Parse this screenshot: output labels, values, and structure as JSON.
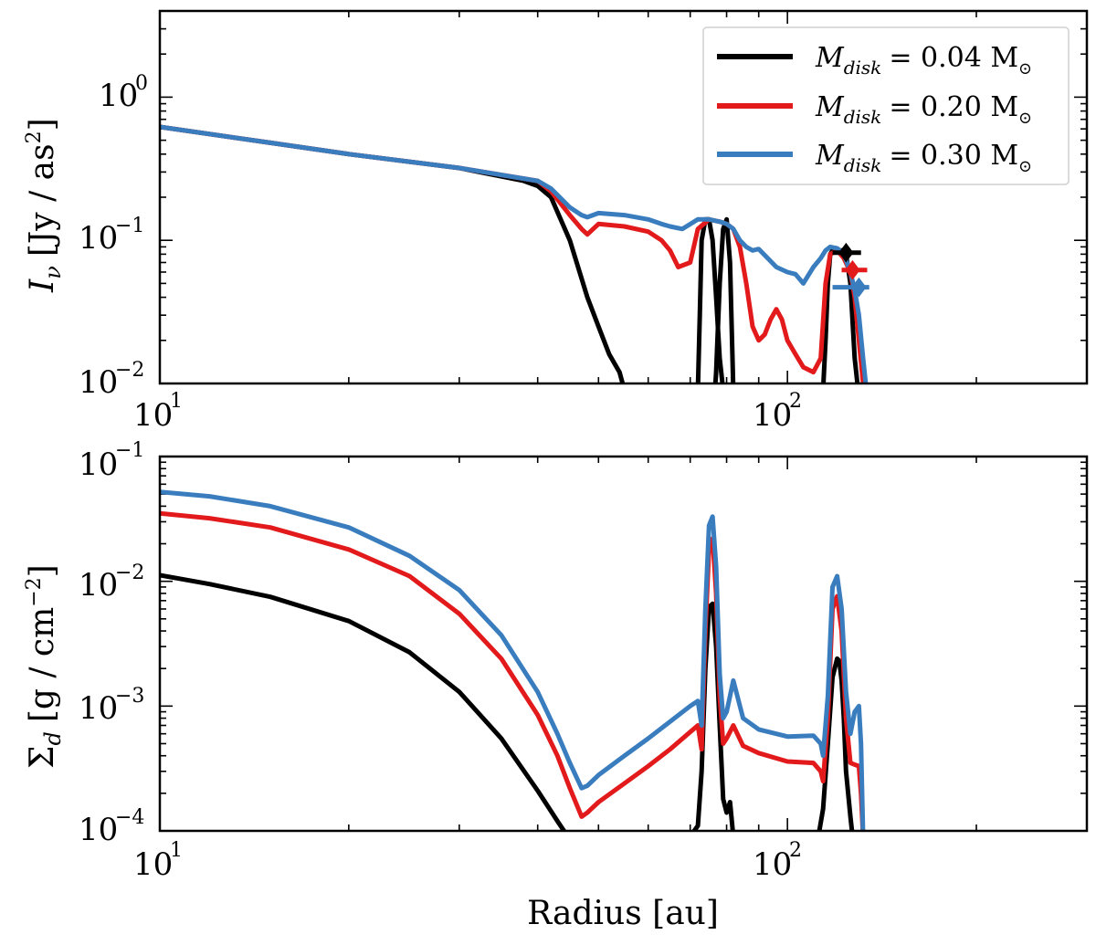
{
  "chart_data": [
    {
      "type": "line",
      "id": "top",
      "ylabel_symbol": "I",
      "ylabel_sub": "ν",
      "ylabel_units": "[Jy / as",
      "ylabel_units_sup": "2",
      "ylabel_units_close": "]",
      "xscale": "log",
      "yscale": "log",
      "xlim": [
        10,
        300
      ],
      "ylim": [
        0.01,
        4
      ],
      "yticks": [
        {
          "value": 1,
          "base": "10",
          "exp": "0"
        },
        {
          "value": 0.1,
          "base": "10",
          "exp": "−1"
        },
        {
          "value": 0.01,
          "base": "10",
          "exp": "−2"
        }
      ],
      "xticks": [
        {
          "value": 10,
          "base": "10",
          "exp": "1"
        },
        {
          "value": 100,
          "base": "10",
          "exp": "2"
        }
      ],
      "legend": {
        "placement": "top-right",
        "entries": [
          {
            "name_main": "M",
            "name_sub": "disk",
            "value_text": "= 0.04 M",
            "sun": "⊙",
            "color": "#000000"
          },
          {
            "name_main": "M",
            "name_sub": "disk",
            "value_text": "= 0.20 M",
            "sun": "⊙",
            "color": "#e31a1c"
          },
          {
            "name_main": "M",
            "name_sub": "disk",
            "value_text": "= 0.30 M",
            "sun": "⊙",
            "color": "#3a7dbf"
          }
        ]
      },
      "series": [
        {
          "name": "M_disk = 0.04 Msun",
          "color": "#000000",
          "x": [
            10,
            15,
            20,
            30,
            38,
            40,
            42,
            45,
            48,
            50,
            52,
            54,
            55
          ],
          "y": [
            0.62,
            0.48,
            0.4,
            0.32,
            0.26,
            0.24,
            0.2,
            0.1,
            0.04,
            0.025,
            0.016,
            0.012,
            0.009
          ],
          "segments_extra": [
            {
              "x": [
                72,
                72.5,
                73,
                74,
                75,
                76,
                77,
                78,
                79,
                80,
                81
              ],
              "y": [
                0.009,
                0.03,
                0.1,
                0.14,
                0.14,
                0.1,
                0.04,
                0.015,
                0.009,
                0.006,
                0.004
              ]
            },
            {
              "x": [
                76,
                77,
                78,
                79,
                80,
                81,
                82
              ],
              "y": [
                0.005,
                0.012,
                0.05,
                0.12,
                0.14,
                0.07,
                0.009
              ]
            },
            {
              "x": [
                114,
                115,
                116,
                117,
                118,
                120,
                122,
                124,
                126,
                128,
                130
              ],
              "y": [
                0.009,
                0.02,
                0.05,
                0.08,
                0.085,
                0.085,
                0.085,
                0.08,
                0.05,
                0.015,
                0.008
              ]
            }
          ],
          "marker": {
            "x": 124,
            "y": 0.082
          },
          "errorbar": {
            "x0": 118,
            "x1": 131,
            "y": 0.082
          }
        },
        {
          "name": "M_disk = 0.20 Msun",
          "color": "#e31a1c",
          "x": [
            10,
            15,
            20,
            30,
            38,
            40,
            42,
            45,
            47,
            48,
            50,
            55,
            60,
            63,
            65,
            67,
            70,
            72,
            75,
            78,
            80,
            82,
            84,
            86,
            88,
            90,
            92,
            94,
            96,
            98,
            100,
            103,
            106,
            110,
            113,
            115,
            117,
            120,
            123,
            126,
            128,
            130,
            132,
            134
          ],
          "y": [
            0.62,
            0.48,
            0.4,
            0.32,
            0.27,
            0.26,
            0.22,
            0.15,
            0.12,
            0.11,
            0.13,
            0.125,
            0.115,
            0.1,
            0.085,
            0.065,
            0.07,
            0.12,
            0.14,
            0.135,
            0.13,
            0.12,
            0.09,
            0.05,
            0.025,
            0.02,
            0.022,
            0.028,
            0.033,
            0.028,
            0.02,
            0.016,
            0.013,
            0.012,
            0.015,
            0.05,
            0.08,
            0.085,
            0.075,
            0.06,
            0.04,
            0.02,
            0.01,
            0.008
          ],
          "marker": {
            "x": 127,
            "y": 0.062
          },
          "errorbar": {
            "x0": 122,
            "x1": 134,
            "y": 0.062
          }
        },
        {
          "name": "M_disk = 0.30 Msun",
          "color": "#3a7dbf",
          "x": [
            10,
            15,
            20,
            30,
            38,
            40,
            42,
            45,
            47,
            48,
            50,
            55,
            60,
            63,
            65,
            68,
            72,
            75,
            78,
            80,
            82,
            84,
            86,
            88,
            90,
            93,
            96,
            100,
            103,
            106,
            110,
            113,
            115,
            117,
            120,
            123,
            126,
            128,
            130,
            132,
            134
          ],
          "y": [
            0.62,
            0.48,
            0.4,
            0.32,
            0.27,
            0.26,
            0.23,
            0.17,
            0.15,
            0.145,
            0.155,
            0.15,
            0.14,
            0.13,
            0.125,
            0.12,
            0.14,
            0.14,
            0.135,
            0.13,
            0.12,
            0.1,
            0.09,
            0.085,
            0.087,
            0.075,
            0.065,
            0.06,
            0.058,
            0.05,
            0.065,
            0.075,
            0.085,
            0.09,
            0.088,
            0.08,
            0.06,
            0.045,
            0.03,
            0.015,
            0.008
          ],
          "marker": {
            "x": 130,
            "y": 0.047
          },
          "errorbar": {
            "x0": 118,
            "x1": 135,
            "y": 0.047
          }
        }
      ]
    },
    {
      "type": "line",
      "id": "bottom",
      "xlabel": "Radius [au]",
      "ylabel_symbol": "Σ",
      "ylabel_sub": "d",
      "ylabel_units": "[g / cm",
      "ylabel_units_sup": "−2",
      "ylabel_units_close": "]",
      "xscale": "log",
      "yscale": "log",
      "xlim": [
        10,
        300
      ],
      "ylim": [
        0.0001,
        0.1
      ],
      "yticks": [
        {
          "value": 0.1,
          "base": "10",
          "exp": "−1"
        },
        {
          "value": 0.01,
          "base": "10",
          "exp": "−2"
        },
        {
          "value": 0.001,
          "base": "10",
          "exp": "−3"
        },
        {
          "value": 0.0001,
          "base": "10",
          "exp": "−4"
        }
      ],
      "xticks": [
        {
          "value": 10,
          "base": "10",
          "exp": "1"
        },
        {
          "value": 100,
          "base": "10",
          "exp": "2"
        }
      ],
      "series": [
        {
          "name": "M_disk = 0.04 Msun",
          "color": "#000000",
          "x": [
            10,
            12,
            15,
            20,
            25,
            30,
            35,
            40,
            43,
            45
          ],
          "y": [
            0.0112,
            0.0095,
            0.0075,
            0.0048,
            0.0027,
            0.0013,
            0.00055,
            0.00021,
            0.00012,
            8.5e-05
          ],
          "segments_extra": [
            {
              "x": [
                70,
                72,
                73,
                74,
                75,
                76,
                77,
                78,
                79,
                80,
                81,
                82
              ],
              "y": [
                9e-05,
                0.00011,
                0.0003,
                0.002,
                0.0062,
                0.0066,
                0.003,
                0.0007,
                0.00018,
                0.00014,
                0.00017,
                9e-05
              ]
            },
            {
              "x": [
                112,
                114,
                116,
                118,
                120,
                121,
                122,
                123,
                124,
                126,
                127
              ],
              "y": [
                9e-05,
                0.00015,
                0.0005,
                0.0017,
                0.0024,
                0.0023,
                0.0016,
                0.0008,
                0.0003,
                0.00013,
                9e-05
              ]
            }
          ]
        },
        {
          "name": "M_disk = 0.20 Msun",
          "color": "#e31a1c",
          "x": [
            10,
            12,
            15,
            20,
            25,
            30,
            35,
            40,
            43,
            45,
            47,
            48,
            50,
            55,
            60,
            65,
            70,
            72,
            73,
            74,
            75,
            76,
            77,
            78,
            79,
            80,
            82,
            85,
            90,
            100,
            110,
            113,
            114,
            116,
            118,
            120,
            122,
            124,
            126,
            128,
            130,
            131,
            132
          ],
          "y": [
            0.035,
            0.032,
            0.027,
            0.018,
            0.011,
            0.0055,
            0.0024,
            0.00085,
            0.0004,
            0.00022,
            0.00013,
            0.00014,
            0.00017,
            0.00024,
            0.00033,
            0.00045,
            0.00062,
            0.0007,
            0.00045,
            0.004,
            0.018,
            0.022,
            0.008,
            0.0012,
            0.0005,
            0.00055,
            0.0007,
            0.00048,
            0.00042,
            0.00036,
            0.00035,
            0.0003,
            0.00025,
            0.0008,
            0.006,
            0.0076,
            0.004,
            0.0008,
            0.00035,
            0.00034,
            0.00033,
            0.0002,
            9e-05
          ]
        },
        {
          "name": "M_disk = 0.30 Msun",
          "color": "#3a7dbf",
          "x": [
            10,
            12,
            15,
            20,
            25,
            30,
            35,
            40,
            43,
            45,
            47,
            48,
            50,
            55,
            60,
            65,
            70,
            72,
            73,
            74,
            75,
            76,
            77,
            78,
            79,
            80,
            82,
            85,
            90,
            100,
            110,
            113,
            114,
            116,
            118,
            120,
            122,
            124,
            126,
            128,
            130,
            131,
            132
          ],
          "y": [
            0.052,
            0.048,
            0.04,
            0.027,
            0.016,
            0.0085,
            0.0037,
            0.0013,
            0.0006,
            0.00035,
            0.00022,
            0.00023,
            0.00028,
            0.0004,
            0.00055,
            0.00075,
            0.001,
            0.0011,
            0.0007,
            0.006,
            0.028,
            0.033,
            0.013,
            0.0018,
            0.0008,
            0.0009,
            0.0016,
            0.0008,
            0.00065,
            0.00057,
            0.00058,
            0.0005,
            0.0004,
            0.0012,
            0.009,
            0.011,
            0.006,
            0.0013,
            0.0006,
            0.0009,
            0.001,
            0.0005,
            9e-05
          ]
        }
      ]
    }
  ]
}
